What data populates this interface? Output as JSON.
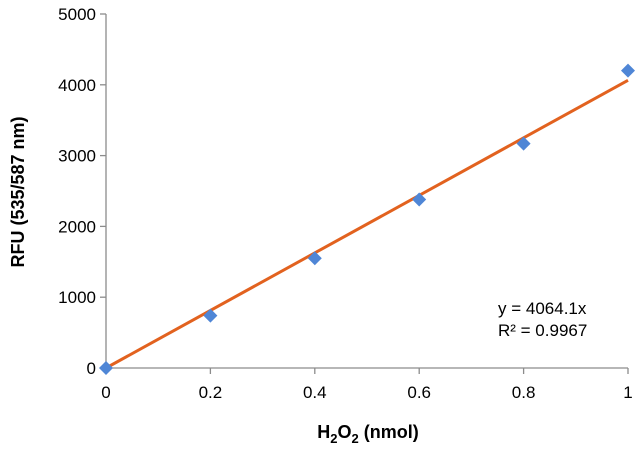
{
  "chart_data": {
    "type": "scatter",
    "title": "",
    "xlabel": "H2O2 (nmol)",
    "xlabel_parts": {
      "base": "H",
      "sub1": "2",
      "mid": "O",
      "sub2": "2",
      "rest": " (nmol)"
    },
    "ylabel": "RFU (535/587 nm)",
    "xlim": [
      0,
      1
    ],
    "ylim": [
      0,
      5000
    ],
    "x_ticks": [
      0,
      0.2,
      0.4,
      0.6,
      0.8,
      1
    ],
    "x_tick_labels": [
      "0",
      "0.2",
      "0.4",
      "0.6",
      "0.8",
      "1"
    ],
    "y_ticks": [
      0,
      1000,
      2000,
      3000,
      4000,
      5000
    ],
    "y_tick_labels": [
      "0",
      "1000",
      "2000",
      "3000",
      "4000",
      "5000"
    ],
    "grid": false,
    "series": [
      {
        "x": [
          0,
          0.2,
          0.4,
          0.6,
          0.8,
          1.0
        ],
        "y": [
          0,
          740,
          1550,
          2380,
          3170,
          4200
        ],
        "marker": "diamond",
        "color": "#4f86d6"
      }
    ],
    "trendline": {
      "type": "linear",
      "slope": 4064.1,
      "intercept": 0,
      "color": "#e2621f",
      "equation": "y = 4064.1x",
      "r_squared": "R² = 0.9967"
    }
  }
}
